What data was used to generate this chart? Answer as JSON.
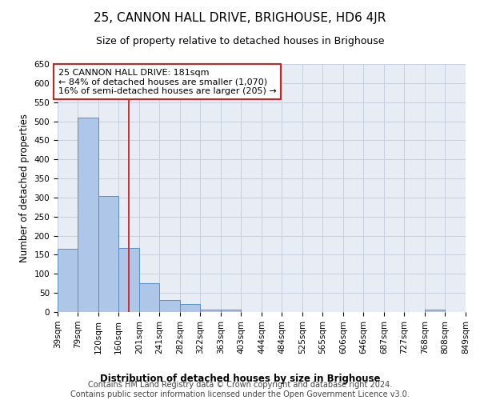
{
  "title": "25, CANNON HALL DRIVE, BRIGHOUSE, HD6 4JR",
  "subtitle": "Size of property relative to detached houses in Brighouse",
  "xlabel_title": "Distribution of detached houses by size in Brighouse",
  "ylabel": "Number of detached properties",
  "bar_values": [
    165,
    510,
    303,
    168,
    75,
    31,
    20,
    7,
    7,
    0,
    0,
    0,
    0,
    0,
    0,
    0,
    0,
    0,
    7,
    0
  ],
  "bin_edges": [
    39,
    79,
    120,
    160,
    201,
    241,
    282,
    322,
    363,
    403,
    444,
    484,
    525,
    565,
    606,
    646,
    687,
    727,
    768,
    808,
    849
  ],
  "x_tick_labels": [
    "39sqm",
    "79sqm",
    "120sqm",
    "160sqm",
    "201sqm",
    "241sqm",
    "282sqm",
    "322sqm",
    "363sqm",
    "403sqm",
    "444sqm",
    "484sqm",
    "525sqm",
    "565sqm",
    "606sqm",
    "646sqm",
    "687sqm",
    "727sqm",
    "768sqm",
    "808sqm",
    "849sqm"
  ],
  "bar_color": "#aec6e8",
  "bar_edge_color": "#5a8fc2",
  "grid_color": "#c8d0de",
  "background_color": "#e8edf5",
  "vline_x": 181,
  "vline_color": "#cc2222",
  "annotation_text": "25 CANNON HALL DRIVE: 181sqm\n← 84% of detached houses are smaller (1,070)\n16% of semi-detached houses are larger (205) →",
  "annotation_box_color": "#cc2222",
  "ylim": [
    0,
    650
  ],
  "yticks": [
    0,
    50,
    100,
    150,
    200,
    250,
    300,
    350,
    400,
    450,
    500,
    550,
    600,
    650
  ],
  "footer_line1": "Contains HM Land Registry data © Crown copyright and database right 2024.",
  "footer_line2": "Contains public sector information licensed under the Open Government Licence v3.0.",
  "title_fontsize": 11,
  "subtitle_fontsize": 9,
  "axis_label_fontsize": 8.5,
  "tick_fontsize": 7.5,
  "annotation_fontsize": 8,
  "footer_fontsize": 7
}
